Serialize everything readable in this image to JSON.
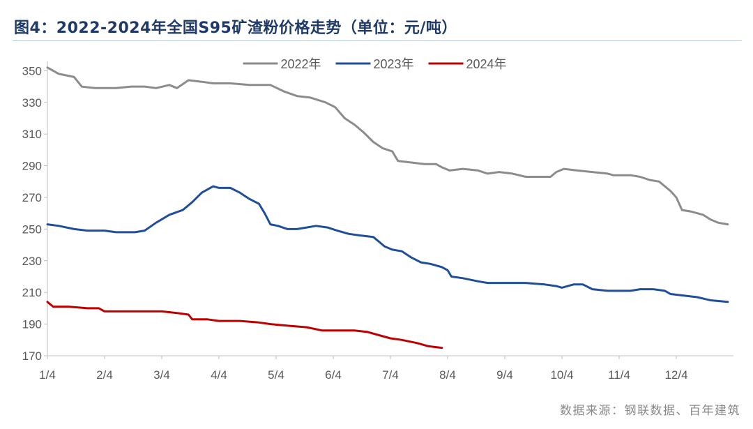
{
  "header": {
    "title": "图4：2022-2024年全国S95矿渣粉价格走势（单位：元/吨）"
  },
  "footer": {
    "source": "数据来源：钢联数据、百年建筑"
  },
  "chart_data": {
    "type": "line",
    "title": "图4：2022-2024年全国S95矿渣粉价格走势（单位：元/吨）",
    "xlabel": "",
    "ylabel": "",
    "x_ticks": [
      "1/4",
      "2/4",
      "3/4",
      "4/4",
      "5/4",
      "6/4",
      "7/4",
      "8/4",
      "9/4",
      "10/4",
      "11/4",
      "12/4"
    ],
    "ylim": [
      170,
      355
    ],
    "y_ticks": [
      170,
      190,
      210,
      230,
      250,
      270,
      290,
      310,
      330,
      350
    ],
    "grid": false,
    "legend_position": "top",
    "series": [
      {
        "name": "2022年",
        "color": "#8c8c8c",
        "points": [
          [
            "1/4",
            352
          ],
          [
            "1/10",
            348
          ],
          [
            "1/18",
            346
          ],
          [
            "1/22",
            340
          ],
          [
            "1/29",
            339
          ],
          [
            "2/4",
            339
          ],
          [
            "2/10",
            339
          ],
          [
            "2/18",
            340
          ],
          [
            "2/25",
            340
          ],
          [
            "3/1",
            339
          ],
          [
            "3/8",
            341
          ],
          [
            "3/12",
            339
          ],
          [
            "3/18",
            344
          ],
          [
            "3/25",
            343
          ],
          [
            "4/1",
            342
          ],
          [
            "4/10",
            342
          ],
          [
            "4/20",
            341
          ],
          [
            "4/28",
            341
          ],
          [
            "5/1",
            341
          ],
          [
            "5/8",
            337
          ],
          [
            "5/15",
            334
          ],
          [
            "5/22",
            333
          ],
          [
            "5/30",
            330
          ],
          [
            "6/5",
            327
          ],
          [
            "6/10",
            320
          ],
          [
            "6/15",
            316
          ],
          [
            "6/20",
            311
          ],
          [
            "6/25",
            305
          ],
          [
            "6/30",
            301
          ],
          [
            "7/5",
            299
          ],
          [
            "7/8",
            293
          ],
          [
            "7/15",
            292
          ],
          [
            "7/22",
            291
          ],
          [
            "7/28",
            291
          ],
          [
            "8/1",
            289
          ],
          [
            "8/5",
            287
          ],
          [
            "8/12",
            288
          ],
          [
            "8/20",
            287
          ],
          [
            "8/25",
            285
          ],
          [
            "9/1",
            286
          ],
          [
            "9/8",
            285
          ],
          [
            "9/15",
            283
          ],
          [
            "9/22",
            283
          ],
          [
            "9/28",
            283
          ],
          [
            "10/1",
            286
          ],
          [
            "10/5",
            288
          ],
          [
            "10/12",
            287
          ],
          [
            "10/20",
            286
          ],
          [
            "10/28",
            285
          ],
          [
            "11/1",
            284
          ],
          [
            "11/10",
            284
          ],
          [
            "11/15",
            283
          ],
          [
            "11/20",
            281
          ],
          [
            "11/25",
            280
          ],
          [
            "12/1",
            274
          ],
          [
            "12/4",
            270
          ],
          [
            "12/7",
            262
          ],
          [
            "12/12",
            261
          ],
          [
            "12/18",
            259
          ],
          [
            "12/22",
            256
          ],
          [
            "12/26",
            254
          ],
          [
            "12/31",
            253
          ]
        ]
      },
      {
        "name": "2023年",
        "color": "#1f4e9a",
        "points": [
          [
            "1/4",
            253
          ],
          [
            "1/10",
            252
          ],
          [
            "1/18",
            250
          ],
          [
            "1/25",
            249
          ],
          [
            "2/4",
            249
          ],
          [
            "2/10",
            248
          ],
          [
            "2/20",
            248
          ],
          [
            "2/25",
            249
          ],
          [
            "3/1",
            254
          ],
          [
            "3/8",
            259
          ],
          [
            "3/15",
            262
          ],
          [
            "3/20",
            267
          ],
          [
            "3/25",
            273
          ],
          [
            "4/1",
            277
          ],
          [
            "4/4",
            276
          ],
          [
            "4/10",
            276
          ],
          [
            "4/15",
            273
          ],
          [
            "4/20",
            269
          ],
          [
            "4/25",
            266
          ],
          [
            "4/28",
            260
          ],
          [
            "5/1",
            253
          ],
          [
            "5/5",
            252
          ],
          [
            "5/10",
            250
          ],
          [
            "5/15",
            250
          ],
          [
            "5/20",
            251
          ],
          [
            "5/25",
            252
          ],
          [
            "6/1",
            251
          ],
          [
            "6/6",
            249
          ],
          [
            "6/12",
            247
          ],
          [
            "6/18",
            246
          ],
          [
            "6/25",
            245
          ],
          [
            "7/1",
            239
          ],
          [
            "7/5",
            237
          ],
          [
            "7/10",
            236
          ],
          [
            "7/15",
            232
          ],
          [
            "7/20",
            229
          ],
          [
            "7/25",
            228
          ],
          [
            "7/31",
            226
          ],
          [
            "8/4",
            224
          ],
          [
            "8/6",
            220
          ],
          [
            "8/12",
            219
          ],
          [
            "8/20",
            217
          ],
          [
            "8/25",
            216
          ],
          [
            "9/4",
            216
          ],
          [
            "9/15",
            216
          ],
          [
            "9/25",
            215
          ],
          [
            "10/1",
            214
          ],
          [
            "10/4",
            213
          ],
          [
            "10/10",
            215
          ],
          [
            "10/15",
            215
          ],
          [
            "10/20",
            212
          ],
          [
            "10/28",
            211
          ],
          [
            "11/1",
            211
          ],
          [
            "11/10",
            211
          ],
          [
            "11/15",
            212
          ],
          [
            "11/22",
            212
          ],
          [
            "11/28",
            211
          ],
          [
            "12/1",
            209
          ],
          [
            "12/8",
            208
          ],
          [
            "12/15",
            207
          ],
          [
            "12/22",
            205
          ],
          [
            "12/31",
            204
          ]
        ]
      },
      {
        "name": "2024年",
        "color": "#c00000",
        "points": [
          [
            "1/4",
            204
          ],
          [
            "1/7",
            201
          ],
          [
            "1/15",
            201
          ],
          [
            "1/25",
            200
          ],
          [
            "2/1",
            200
          ],
          [
            "2/4",
            198
          ],
          [
            "2/15",
            198
          ],
          [
            "2/25",
            198
          ],
          [
            "3/4",
            198
          ],
          [
            "3/12",
            197
          ],
          [
            "3/18",
            196
          ],
          [
            "3/20",
            193
          ],
          [
            "3/28",
            193
          ],
          [
            "4/4",
            192
          ],
          [
            "4/15",
            192
          ],
          [
            "4/25",
            191
          ],
          [
            "5/1",
            190
          ],
          [
            "5/10",
            189
          ],
          [
            "5/20",
            188
          ],
          [
            "5/28",
            186
          ],
          [
            "6/4",
            186
          ],
          [
            "6/15",
            186
          ],
          [
            "6/22",
            185
          ],
          [
            "6/28",
            183
          ],
          [
            "7/4",
            181
          ],
          [
            "7/10",
            180
          ],
          [
            "7/18",
            178
          ],
          [
            "7/24",
            176
          ],
          [
            "7/31",
            175
          ]
        ]
      }
    ]
  }
}
